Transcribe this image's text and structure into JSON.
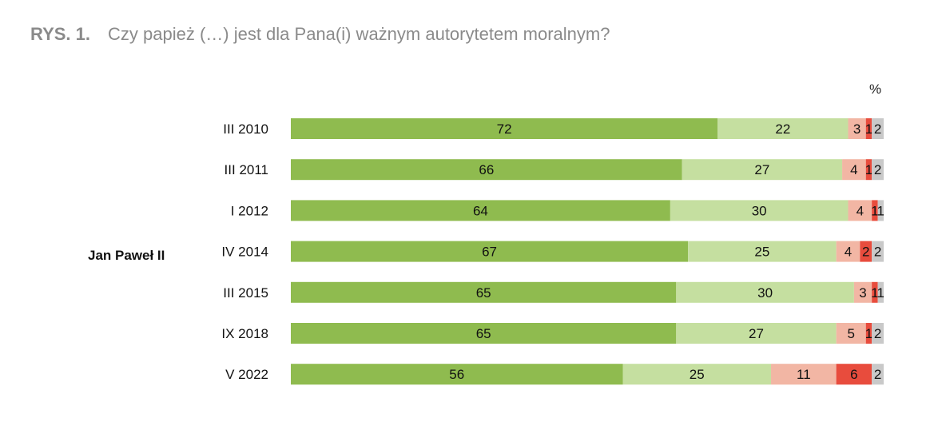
{
  "title": {
    "prefix": "RYS. 1.",
    "text": "Czy papież (…) jest dla Pana(i) ważnym autorytetem moralnym?"
  },
  "unit_label": "%",
  "colors": {
    "series_1": "#8fbb4f",
    "series_2": "#c5dfa0",
    "series_3": "#f2b6a4",
    "series_4": "#e84c3d",
    "series_5": "#c9c9c9"
  },
  "chart_data": {
    "type": "bar",
    "orientation": "horizontal",
    "stacked": true,
    "group_label": "Jan Paweł II",
    "categories": [
      "III 2010",
      "III 2011",
      "I 2012",
      "IV 2014",
      "III 2015",
      "IX 2018",
      "V 2022"
    ],
    "series": [
      {
        "values": [
          72,
          66,
          64,
          67,
          65,
          65,
          56
        ]
      },
      {
        "values": [
          22,
          27,
          30,
          25,
          30,
          27,
          25
        ]
      },
      {
        "values": [
          3,
          4,
          4,
          4,
          3,
          5,
          11
        ]
      },
      {
        "values": [
          1,
          1,
          1,
          2,
          1,
          1,
          6
        ]
      },
      {
        "values": [
          2,
          2,
          1,
          2,
          1,
          2,
          2
        ]
      }
    ],
    "xlim": [
      0,
      100
    ],
    "unit": "%"
  }
}
